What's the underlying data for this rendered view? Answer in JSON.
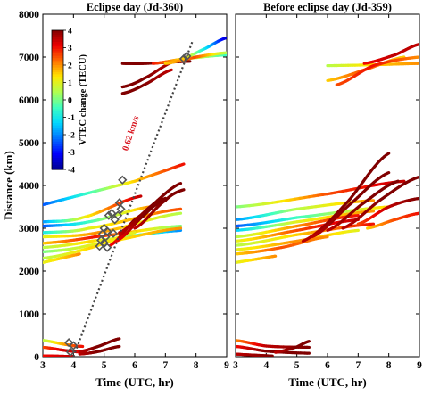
{
  "chart_data": [
    {
      "type": "line",
      "title": "Eclipse day (Jd-360)",
      "xlabel": "Time (UTC, hr)",
      "ylabel": "Distance (km)",
      "xlim": [
        3,
        9
      ],
      "ylim": [
        0,
        8000
      ],
      "xticks": [
        "3",
        "4",
        "5",
        "6",
        "7",
        "8",
        "9"
      ],
      "yticks": [
        "0",
        "1000",
        "2000",
        "3000",
        "4000",
        "5000",
        "6000",
        "7000",
        "8000"
      ],
      "grid": false,
      "colorbar": {
        "label": "VTEC change (TECU)",
        "min": -4,
        "max": 4,
        "ticks": [
          "4",
          "3",
          "2",
          "1",
          "0",
          "-1",
          "-2",
          "-3",
          "-4"
        ],
        "colormap": [
          "#00008f",
          "#0000ff",
          "#0070ff",
          "#00d8ff",
          "#40ffbf",
          "#b0ff50",
          "#ffe800",
          "#ff7000",
          "#ee0000",
          "#800000"
        ]
      },
      "annotation": "0.62 km/s",
      "fit_line": [
        [
          4.0,
          0
        ],
        [
          7.9,
          7400
        ]
      ],
      "series": [
        {
          "x": [
            3.0,
            6.0
          ],
          "y": [
            3550,
            4100
          ],
          "vtec": [
            -2.5,
            1.5
          ]
        },
        {
          "x": [
            6.0,
            7.6
          ],
          "y": [
            4100,
            4500
          ],
          "vtec": [
            1.5,
            3.0
          ]
        },
        {
          "x": [
            3.0,
            4.3,
            6.2
          ],
          "y": [
            3150,
            3250,
            3750
          ],
          "vtec": [
            -2.0,
            1.0,
            3.5
          ]
        },
        {
          "x": [
            3.0,
            4.5,
            6.5
          ],
          "y": [
            3050,
            3150,
            3500
          ],
          "vtec": [
            -2.5,
            -0.5,
            2.0
          ]
        },
        {
          "x": [
            3.0,
            4.5,
            7.5
          ],
          "y": [
            2900,
            3000,
            3450
          ],
          "vtec": [
            -1.0,
            1.0,
            2.5
          ]
        },
        {
          "x": [
            3.0,
            4.8,
            7.5
          ],
          "y": [
            2800,
            2900,
            3350
          ],
          "vtec": [
            1.0,
            2.0,
            0.5
          ]
        },
        {
          "x": [
            3.0,
            4.7,
            7.5
          ],
          "y": [
            2650,
            2800,
            3050
          ],
          "vtec": [
            1.5,
            3.0,
            0.0
          ]
        },
        {
          "x": [
            3.0,
            4.6,
            7.5
          ],
          "y": [
            2550,
            2700,
            2950
          ],
          "vtec": [
            0.5,
            1.5,
            -2.0
          ]
        },
        {
          "x": [
            3.0,
            4.5,
            7.5
          ],
          "y": [
            2450,
            2600,
            3000
          ],
          "vtec": [
            0.0,
            1.0,
            2.0
          ]
        },
        {
          "x": [
            3.0,
            4.6,
            6.0
          ],
          "y": [
            2300,
            2550,
            2900
          ],
          "vtec": [
            0.5,
            1.5,
            1.0
          ]
        },
        {
          "x": [
            3.0,
            4.2
          ],
          "y": [
            2200,
            2400
          ],
          "vtec": [
            1.0,
            2.0
          ]
        },
        {
          "x": [
            5.2,
            6.0,
            7.0
          ],
          "y": [
            2600,
            3200,
            3650
          ],
          "vtec": [
            3.0,
            4.0,
            4.0
          ]
        },
        {
          "x": [
            5.5,
            6.5,
            7.5
          ],
          "y": [
            2900,
            3500,
            4050
          ],
          "vtec": [
            3.5,
            4.0,
            4.0
          ]
        },
        {
          "x": [
            6.0,
            7.0,
            7.6
          ],
          "y": [
            3000,
            3650,
            3900
          ],
          "vtec": [
            3.5,
            4.0,
            4.0
          ]
        },
        {
          "x": [
            5.4,
            6.3,
            7.0
          ],
          "y": [
            2700,
            3300,
            3700
          ],
          "vtec": [
            3.0,
            4.0,
            4.0
          ]
        },
        {
          "x": [
            3.0,
            3.8,
            4.3
          ],
          "y": [
            380,
            280,
            240
          ],
          "vtec": [
            0.5,
            2.0,
            3.0
          ]
        },
        {
          "x": [
            3.0,
            3.8,
            4.4
          ],
          "y": [
            220,
            140,
            100
          ],
          "vtec": [
            2.5,
            3.5,
            3.0
          ]
        },
        {
          "x": [
            4.2,
            4.8,
            5.5
          ],
          "y": [
            120,
            240,
            420
          ],
          "vtec": [
            3.5,
            4.0,
            4.0
          ]
        },
        {
          "x": [
            4.2,
            4.8,
            5.5
          ],
          "y": [
            60,
            120,
            240
          ],
          "vtec": [
            3.5,
            4.0,
            4.0
          ]
        },
        {
          "x": [
            3.0,
            4.0
          ],
          "y": [
            20,
            5
          ],
          "vtec": [
            3.0,
            3.5
          ]
        },
        {
          "x": [
            5.6,
            6.3,
            7.8
          ],
          "y": [
            6850,
            6850,
            6900
          ],
          "vtec": [
            4.0,
            4.0,
            4.0
          ]
        },
        {
          "x": [
            5.6,
            6.3,
            7.3
          ],
          "y": [
            6300,
            6500,
            6900
          ],
          "vtec": [
            4.0,
            4.0,
            3.5
          ]
        },
        {
          "x": [
            5.6,
            6.3,
            7.2
          ],
          "y": [
            6150,
            6350,
            6700
          ],
          "vtec": [
            4.0,
            4.0,
            3.5
          ]
        },
        {
          "x": [
            6.6,
            7.5,
            9.0
          ],
          "y": [
            6850,
            6950,
            7050
          ],
          "vtec": [
            3.0,
            1.5,
            -0.5
          ]
        },
        {
          "x": [
            7.0,
            8.0,
            9.0
          ],
          "y": [
            6850,
            7000,
            7100
          ],
          "vtec": [
            1.5,
            2.5,
            0.5
          ]
        },
        {
          "x": [
            7.5,
            8.3,
            9.0
          ],
          "y": [
            6950,
            7200,
            7450
          ],
          "vtec": [
            2.0,
            -1.0,
            -3.5
          ]
        }
      ],
      "markers": [
        {
          "x": 3.85,
          "y": 330
        },
        {
          "x": 3.9,
          "y": 110
        },
        {
          "x": 4.0,
          "y": 260
        },
        {
          "x": 4.85,
          "y": 2580
        },
        {
          "x": 4.9,
          "y": 2720
        },
        {
          "x": 4.95,
          "y": 2870
        },
        {
          "x": 5.0,
          "y": 2660
        },
        {
          "x": 5.05,
          "y": 2800
        },
        {
          "x": 5.1,
          "y": 2930
        },
        {
          "x": 5.0,
          "y": 3000
        },
        {
          "x": 5.1,
          "y": 2550
        },
        {
          "x": 5.15,
          "y": 3300
        },
        {
          "x": 5.25,
          "y": 3350
        },
        {
          "x": 5.3,
          "y": 2880
        },
        {
          "x": 5.45,
          "y": 3300
        },
        {
          "x": 5.5,
          "y": 3600
        },
        {
          "x": 5.55,
          "y": 3450
        },
        {
          "x": 5.6,
          "y": 4130
        },
        {
          "x": 5.35,
          "y": 3200
        },
        {
          "x": 7.6,
          "y": 6960
        },
        {
          "x": 7.7,
          "y": 7020
        }
      ]
    },
    {
      "type": "line",
      "title": "Before eclipse day (Jd-359)",
      "xlabel": "Time (UTC, hr)",
      "ylabel": "",
      "xlim": [
        3,
        9
      ],
      "ylim": [
        0,
        8000
      ],
      "xticks": [
        "3",
        "4",
        "5",
        "6",
        "7",
        "8",
        "9"
      ],
      "grid": false,
      "series": [
        {
          "x": [
            3.0,
            6.0,
            8.5
          ],
          "y": [
            3500,
            3800,
            4100
          ],
          "vtec": [
            0.0,
            2.5,
            3.5
          ]
        },
        {
          "x": [
            3.0,
            5.0,
            7.5
          ],
          "y": [
            3200,
            3450,
            3650
          ],
          "vtec": [
            -2.0,
            0.5,
            2.0
          ]
        },
        {
          "x": [
            3.0,
            5.0,
            8.0
          ],
          "y": [
            3050,
            3250,
            3500
          ],
          "vtec": [
            -2.5,
            -0.5,
            1.5
          ]
        },
        {
          "x": [
            3.0,
            5.0,
            7.5
          ],
          "y": [
            2950,
            3150,
            3400
          ],
          "vtec": [
            -1.5,
            1.0,
            2.0
          ]
        },
        {
          "x": [
            3.0,
            5.0,
            7.0
          ],
          "y": [
            2800,
            3050,
            3300
          ],
          "vtec": [
            0.5,
            2.0,
            3.0
          ]
        },
        {
          "x": [
            3.0,
            5.0,
            7.0
          ],
          "y": [
            2700,
            2950,
            3200
          ],
          "vtec": [
            1.0,
            2.5,
            3.5
          ]
        },
        {
          "x": [
            3.0,
            5.0,
            7.5
          ],
          "y": [
            2600,
            2850,
            3100
          ],
          "vtec": [
            0.5,
            1.5,
            3.0
          ]
        },
        {
          "x": [
            3.0,
            5.0,
            7.0
          ],
          "y": [
            2500,
            2700,
            2950
          ],
          "vtec": [
            1.0,
            2.0,
            1.0
          ]
        },
        {
          "x": [
            3.0,
            4.5,
            6.0
          ],
          "y": [
            2400,
            2550,
            2800
          ],
          "vtec": [
            1.5,
            2.5,
            2.0
          ]
        },
        {
          "x": [
            3.0,
            4.3
          ],
          "y": [
            2200,
            2350
          ],
          "vtec": [
            1.0,
            2.0
          ]
        },
        {
          "x": [
            5.2,
            6.5,
            8.0
          ],
          "y": [
            2700,
            3500,
            4750
          ],
          "vtec": [
            3.5,
            4.0,
            4.0
          ]
        },
        {
          "x": [
            5.5,
            6.8,
            8.0
          ],
          "y": [
            2800,
            3600,
            4300
          ],
          "vtec": [
            3.5,
            4.0,
            4.0
          ]
        },
        {
          "x": [
            6.0,
            7.2,
            8.3
          ],
          "y": [
            2950,
            3600,
            4100
          ],
          "vtec": [
            3.5,
            4.0,
            4.0
          ]
        },
        {
          "x": [
            6.5,
            7.8,
            9.0
          ],
          "y": [
            3000,
            3700,
            4200
          ],
          "vtec": [
            3.5,
            4.0,
            4.0
          ]
        },
        {
          "x": [
            7.0,
            8.0,
            9.0
          ],
          "y": [
            3100,
            3500,
            3700
          ],
          "vtec": [
            2.5,
            3.5,
            4.0
          ]
        },
        {
          "x": [
            7.3,
            8.2,
            9.0
          ],
          "y": [
            3000,
            3200,
            3350
          ],
          "vtec": [
            1.5,
            2.5,
            3.0
          ]
        },
        {
          "x": [
            3.0,
            4.0,
            5.4
          ],
          "y": [
            380,
            250,
            220
          ],
          "vtec": [
            2.0,
            3.5,
            4.0
          ]
        },
        {
          "x": [
            3.0,
            4.0,
            5.4
          ],
          "y": [
            240,
            130,
            80
          ],
          "vtec": [
            3.0,
            4.0,
            4.0
          ]
        },
        {
          "x": [
            3.0,
            4.2
          ],
          "y": [
            60,
            15
          ],
          "vtec": [
            3.5,
            4.0
          ]
        },
        {
          "x": [
            4.3,
            5.0,
            5.4
          ],
          "y": [
            100,
            230,
            360
          ],
          "vtec": [
            3.5,
            4.0,
            4.0
          ]
        },
        {
          "x": [
            6.0,
            7.5,
            9.0
          ],
          "y": [
            6800,
            6820,
            6850
          ],
          "vtec": [
            0.5,
            1.5,
            2.0
          ]
        },
        {
          "x": [
            6.0,
            7.2,
            8.5
          ],
          "y": [
            6450,
            6700,
            7000
          ],
          "vtec": [
            1.5,
            2.5,
            1.5
          ]
        },
        {
          "x": [
            6.3,
            7.5,
            9.0
          ],
          "y": [
            6350,
            6800,
            7000
          ],
          "vtec": [
            2.5,
            3.0,
            2.0
          ]
        },
        {
          "x": [
            7.2,
            8.2,
            9.0
          ],
          "y": [
            6850,
            7050,
            7300
          ],
          "vtec": [
            3.0,
            3.5,
            3.5
          ]
        }
      ]
    }
  ]
}
